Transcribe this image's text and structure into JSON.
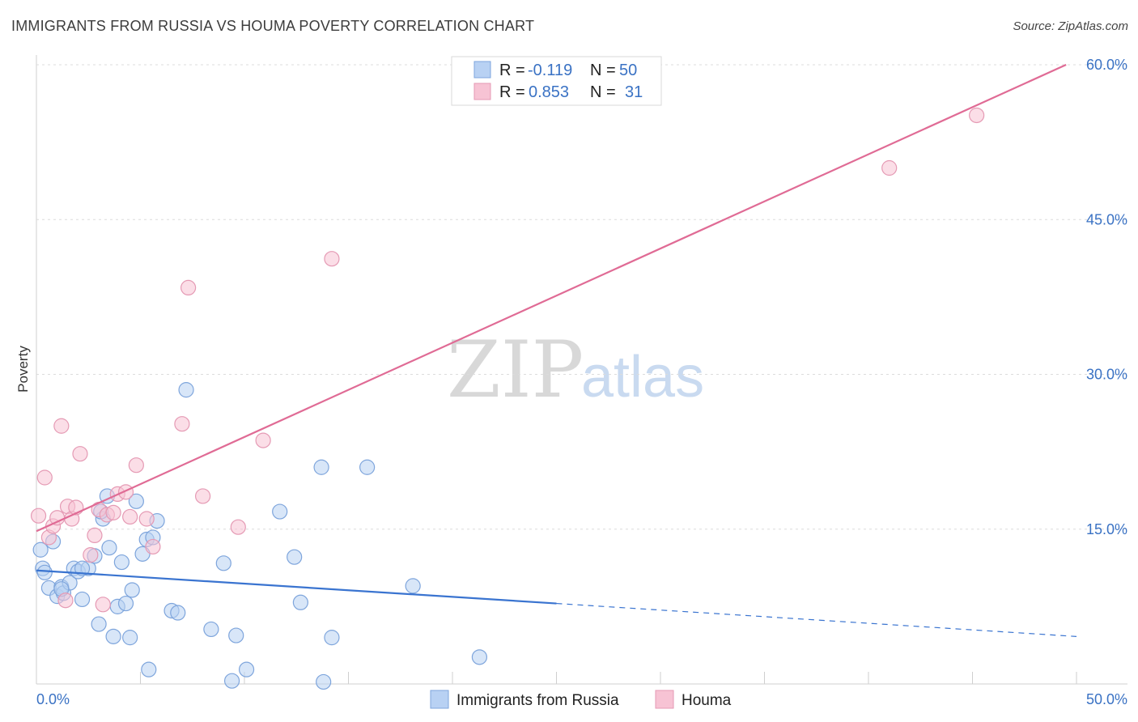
{
  "header": {
    "title": "IMMIGRANTS FROM RUSSIA VS HOUMA POVERTY CORRELATION CHART",
    "source": "Source: ZipAtlas.com"
  },
  "watermark": {
    "zip": "ZIP",
    "atlas": "atlas"
  },
  "colors": {
    "blue": "#3a74d0",
    "blue_fill": "#b8d1f3",
    "pink": "#e06b95",
    "pink_fill": "#f7c3d4",
    "tick": "#3a72c4"
  },
  "chart_data": {
    "type": "scatter",
    "ylabel": "Poverty",
    "xlim": [
      0,
      50
    ],
    "ylim": [
      0,
      60
    ],
    "x_tick_labels": [
      "0.0%",
      "50.0%"
    ],
    "y_ticks": [
      15,
      30,
      45,
      60
    ],
    "y_tick_labels": [
      "15.0%",
      "30.0%",
      "45.0%",
      "60.0%"
    ],
    "grid": true,
    "legend": {
      "position": "top-center",
      "entries": [
        {
          "r_label": "R =",
          "r_value": "-0.119",
          "n_label": "N =",
          "n_value": "50"
        },
        {
          "r_label": "R =",
          "r_value": "0.853",
          "n_label": "N =",
          "n_value": "31"
        }
      ]
    },
    "series": [
      {
        "name": "Immigrants from Russia",
        "color": "#3a74d0",
        "trend": {
          "x0": 0,
          "y0": 11.0,
          "x1": 25,
          "y1": 7.8,
          "dash_to_x": 50,
          "dash_to_y": 4.6
        },
        "points": [
          [
            0.3,
            11.2
          ],
          [
            0.4,
            10.8
          ],
          [
            0.8,
            13.8
          ],
          [
            0.6,
            9.3
          ],
          [
            1.0,
            8.5
          ],
          [
            1.2,
            9.4
          ],
          [
            1.3,
            8.8
          ],
          [
            1.6,
            9.8
          ],
          [
            1.8,
            11.2
          ],
          [
            2.0,
            10.9
          ],
          [
            2.2,
            8.2
          ],
          [
            2.5,
            11.2
          ],
          [
            2.8,
            12.4
          ],
          [
            3.0,
            5.8
          ],
          [
            3.2,
            16.0
          ],
          [
            3.4,
            18.2
          ],
          [
            3.5,
            13.2
          ],
          [
            3.7,
            4.6
          ],
          [
            3.9,
            7.5
          ],
          [
            4.1,
            11.8
          ],
          [
            4.3,
            7.8
          ],
          [
            4.5,
            4.5
          ],
          [
            4.6,
            9.1
          ],
          [
            4.8,
            17.7
          ],
          [
            5.1,
            12.6
          ],
          [
            5.3,
            14.0
          ],
          [
            5.6,
            14.2
          ],
          [
            5.8,
            15.8
          ],
          [
            5.4,
            1.4
          ],
          [
            6.5,
            7.1
          ],
          [
            6.8,
            6.9
          ],
          [
            7.2,
            28.5
          ],
          [
            8.4,
            5.3
          ],
          [
            9.0,
            11.7
          ],
          [
            9.6,
            4.7
          ],
          [
            9.4,
            0.3
          ],
          [
            10.1,
            1.4
          ],
          [
            11.7,
            16.7
          ],
          [
            12.4,
            12.3
          ],
          [
            12.7,
            7.9
          ],
          [
            13.7,
            21.0
          ],
          [
            13.8,
            0.2
          ],
          [
            14.2,
            4.5
          ],
          [
            15.9,
            21.0
          ],
          [
            18.1,
            9.5
          ],
          [
            21.3,
            2.6
          ],
          [
            3.1,
            16.7
          ],
          [
            2.2,
            11.2
          ],
          [
            0.2,
            13.0
          ],
          [
            1.2,
            9.2
          ]
        ]
      },
      {
        "name": "Houma",
        "color": "#e06b95",
        "trend": {
          "x0": 0,
          "y0": 14.8,
          "x1": 49.5,
          "y1": 60.0
        },
        "points": [
          [
            0.1,
            16.3
          ],
          [
            0.4,
            20.0
          ],
          [
            0.6,
            14.2
          ],
          [
            0.8,
            15.3
          ],
          [
            1.0,
            16.1
          ],
          [
            1.2,
            25.0
          ],
          [
            1.4,
            8.1
          ],
          [
            1.5,
            17.2
          ],
          [
            1.7,
            16.0
          ],
          [
            1.9,
            17.1
          ],
          [
            2.1,
            22.3
          ],
          [
            2.6,
            12.5
          ],
          [
            2.8,
            14.4
          ],
          [
            3.0,
            16.9
          ],
          [
            3.2,
            7.7
          ],
          [
            3.4,
            16.4
          ],
          [
            3.7,
            16.6
          ],
          [
            3.9,
            18.4
          ],
          [
            4.3,
            18.6
          ],
          [
            4.5,
            16.2
          ],
          [
            4.8,
            21.2
          ],
          [
            5.3,
            16.0
          ],
          [
            5.6,
            13.3
          ],
          [
            7.0,
            25.2
          ],
          [
            7.3,
            38.4
          ],
          [
            8.0,
            18.2
          ],
          [
            9.7,
            15.2
          ],
          [
            10.9,
            23.6
          ],
          [
            14.2,
            41.2
          ],
          [
            41.0,
            50.0
          ],
          [
            45.2,
            55.1
          ]
        ]
      }
    ]
  },
  "bottom_legend": [
    {
      "label": "Immigrants from Russia"
    },
    {
      "label": "Houma"
    }
  ]
}
